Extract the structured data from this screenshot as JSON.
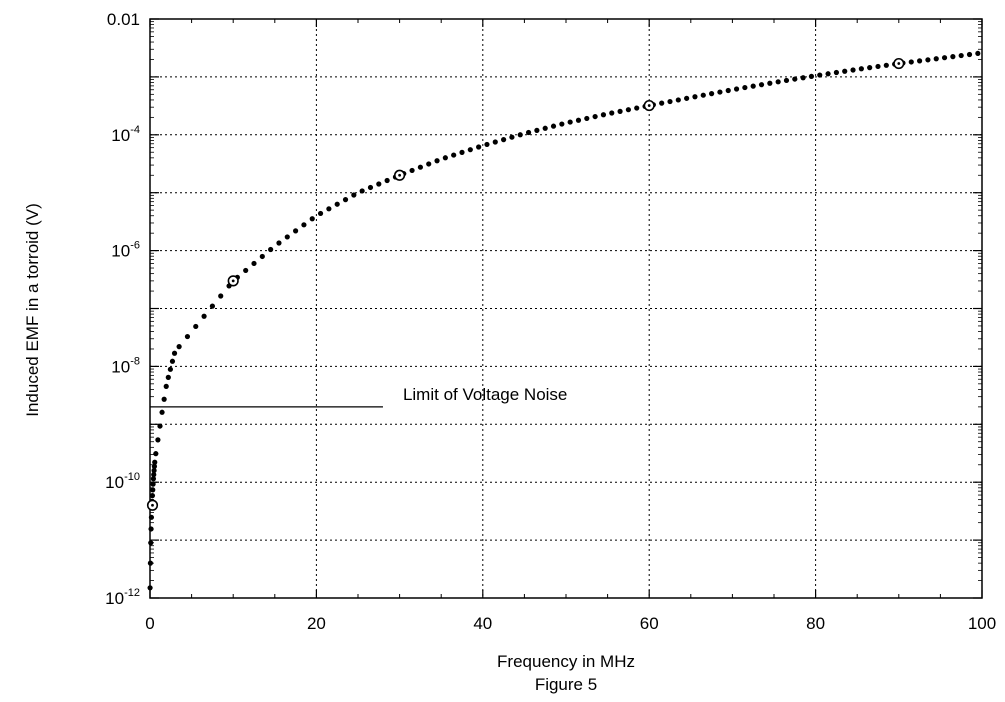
{
  "chart_data": {
    "type": "line",
    "xlabel": "Frequency in MHz",
    "ylabel": "Induced EMF in a torroid (V)",
    "caption": "Figure 5",
    "xlim": [
      0,
      100
    ],
    "ylim": [
      1e-12,
      0.01
    ],
    "yscale": "log",
    "grid": true,
    "x_ticks": [
      "0",
      "20",
      "40",
      "60",
      "80",
      "100"
    ],
    "y_ticks": [
      {
        "base": "0.01",
        "exp": ""
      },
      {
        "base": "10",
        "exp": "-4"
      },
      {
        "base": "10",
        "exp": "-6"
      },
      {
        "base": "10",
        "exp": "-8"
      },
      {
        "base": "10",
        "exp": "-10"
      },
      {
        "base": "10",
        "exp": "-12"
      }
    ],
    "series": [
      {
        "values": [
          [
            0.01,
            1.5e-12
          ],
          [
            0.05,
            4e-12
          ],
          [
            0.1,
            1.1e-11
          ],
          [
            0.2,
            3.5e-11
          ],
          [
            0.4,
            1.1e-10
          ],
          [
            0.6,
            2.5e-10
          ],
          [
            1,
            6e-10
          ],
          [
            1.5,
            1.8e-09
          ],
          [
            2,
            5e-09
          ],
          [
            3,
            1.8e-08
          ],
          [
            5,
            4e-08
          ],
          [
            7,
            9e-08
          ],
          [
            10,
            3e-07
          ],
          [
            15,
            1.2e-06
          ],
          [
            20,
            4e-06
          ],
          [
            25,
            1e-05
          ],
          [
            30,
            2e-05
          ],
          [
            35,
            3.8e-05
          ],
          [
            40,
            6.5e-05
          ],
          [
            45,
            0.000105
          ],
          [
            50,
            0.00016
          ],
          [
            55,
            0.00023
          ],
          [
            60,
            0.00032
          ],
          [
            65,
            0.00044
          ],
          [
            70,
            0.0006
          ],
          [
            75,
            0.0008
          ],
          [
            80,
            0.00105
          ],
          [
            85,
            0.00135
          ],
          [
            90,
            0.0017
          ],
          [
            95,
            0.0021
          ],
          [
            100,
            0.0026
          ]
        ],
        "markers": [
          [
            0.3,
            4e-11
          ],
          [
            10,
            3e-07
          ],
          [
            30,
            2e-05
          ],
          [
            60,
            0.00032
          ],
          [
            90,
            0.0017
          ]
        ],
        "color": "#000000"
      }
    ],
    "annotations": [
      {
        "text": "Limit of Voltage Noise",
        "y": 2e-09,
        "x_start": 0,
        "x_end": 28
      }
    ]
  }
}
